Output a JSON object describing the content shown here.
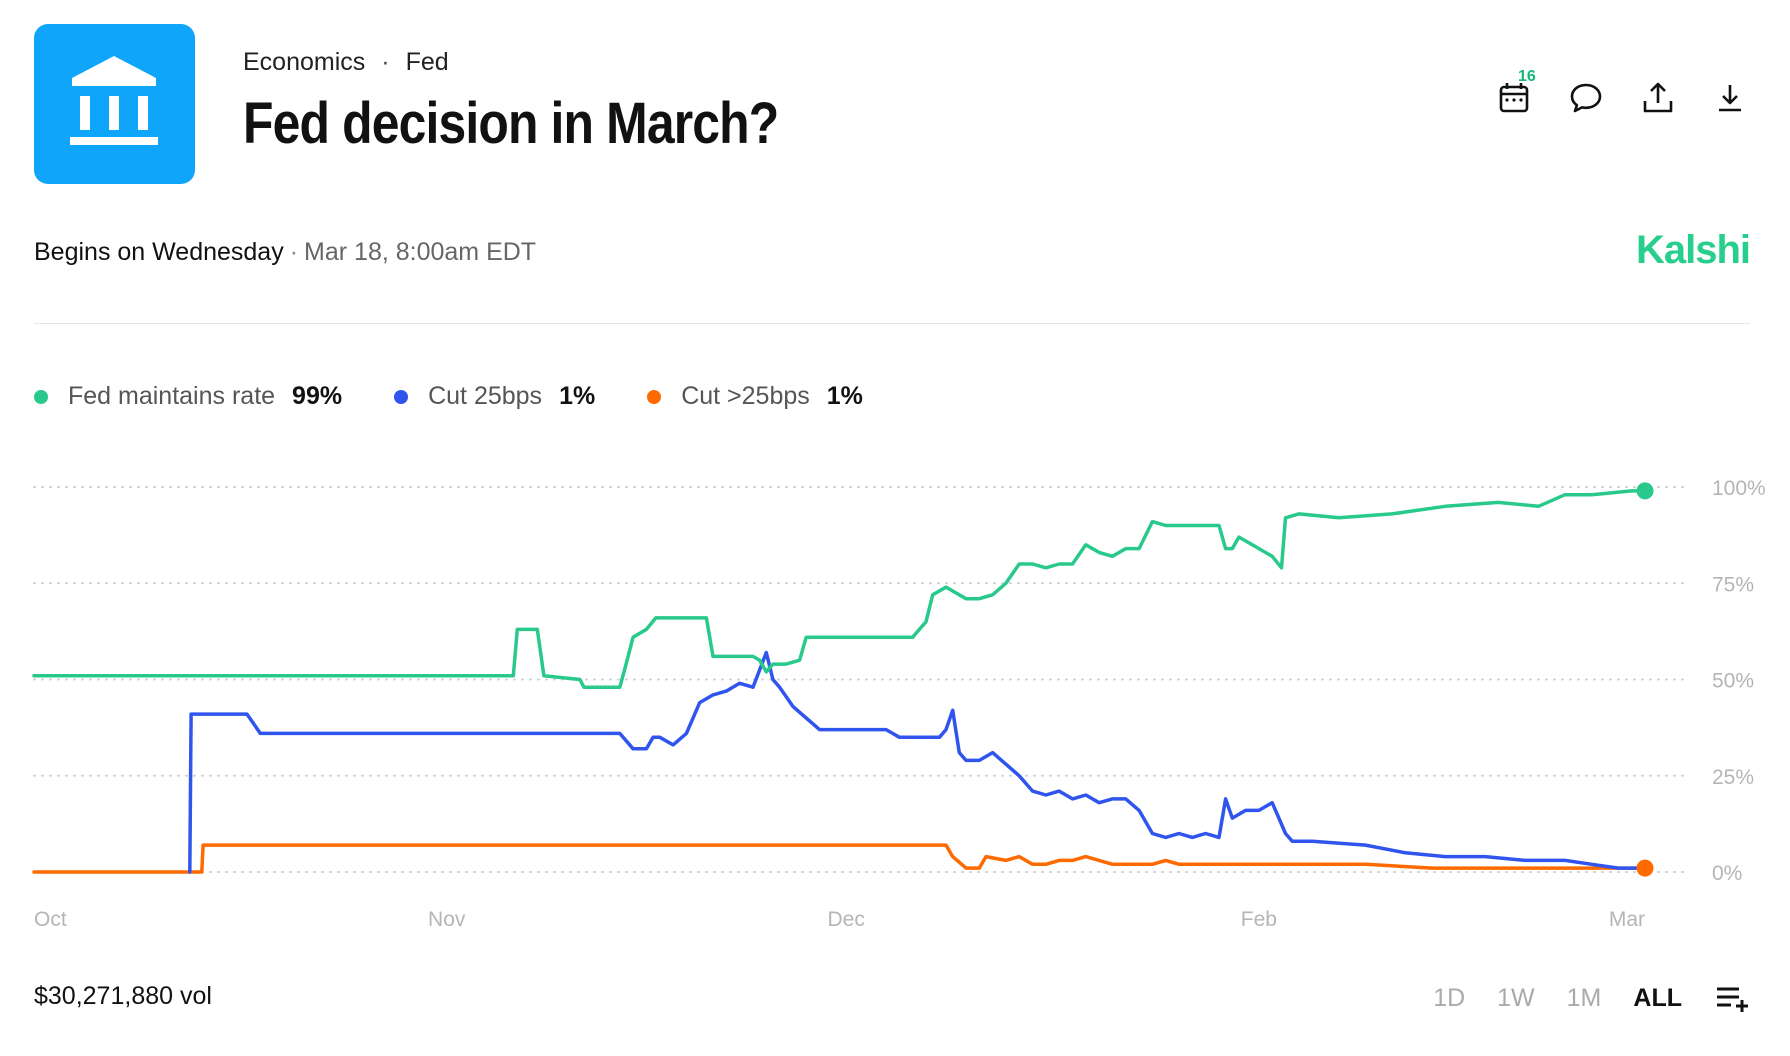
{
  "header": {
    "category": "Economics",
    "subcategory": "Fed",
    "title": "Fed decision in March?",
    "logo_icon": "bank-building-icon",
    "logo_color": "#0ea5fb"
  },
  "actions": {
    "calendar_badge": "16",
    "icons": [
      "calendar-icon",
      "comment-icon",
      "share-icon",
      "download-icon"
    ]
  },
  "schedule": {
    "begins": "Begins on Wednesday",
    "datetime": "Mar 18, 8:00am EDT"
  },
  "brand": {
    "name": "Kalshi",
    "color": "#28ce8b"
  },
  "footer": {
    "volume": "$30,271,880 vol",
    "ranges": [
      "1D",
      "1W",
      "1M",
      "ALL"
    ],
    "active_range": "ALL",
    "menu_icon": "playlist-add-icon"
  },
  "chart_data": {
    "type": "line",
    "x_ticks": [
      "Oct",
      "Nov",
      "Dec",
      "Feb",
      "Mar"
    ],
    "x_tick_positions_day": [
      0,
      31,
      61,
      92,
      121
    ],
    "x_range_days": [
      0,
      121
    ],
    "y_ticks": [
      "0%",
      "25%",
      "50%",
      "75%",
      "100%"
    ],
    "ylim": [
      0,
      100
    ],
    "grid": true,
    "legend_position": "top-left",
    "series": [
      {
        "name": "Fed maintains rate",
        "display": "99%",
        "color": "#28c98b",
        "points": [
          [
            0,
            51
          ],
          [
            36,
            51
          ],
          [
            36.3,
            63
          ],
          [
            37.8,
            63
          ],
          [
            38.3,
            51
          ],
          [
            41,
            50
          ],
          [
            41.3,
            48
          ],
          [
            44,
            48
          ],
          [
            44.4,
            53
          ],
          [
            45,
            61
          ],
          [
            46,
            63
          ],
          [
            46.7,
            66
          ],
          [
            50.5,
            66
          ],
          [
            51,
            56
          ],
          [
            54,
            56
          ],
          [
            54.5,
            55
          ],
          [
            55,
            52
          ],
          [
            55.5,
            54
          ],
          [
            56.5,
            54
          ],
          [
            57.5,
            55
          ],
          [
            58,
            61
          ],
          [
            59,
            61
          ],
          [
            62,
            61
          ],
          [
            66,
            61
          ],
          [
            66.5,
            63
          ],
          [
            67,
            65
          ],
          [
            67.5,
            72
          ],
          [
            68.5,
            74
          ],
          [
            70,
            71
          ],
          [
            71,
            71
          ],
          [
            72,
            72
          ],
          [
            73,
            75
          ],
          [
            74,
            80
          ],
          [
            75,
            80
          ],
          [
            76,
            79
          ],
          [
            77,
            80
          ],
          [
            78,
            80
          ],
          [
            79,
            85
          ],
          [
            80,
            83
          ],
          [
            81,
            82
          ],
          [
            82,
            84
          ],
          [
            83,
            84
          ],
          [
            84,
            91
          ],
          [
            85,
            90
          ],
          [
            87,
            90
          ],
          [
            89,
            90
          ],
          [
            89.5,
            84
          ],
          [
            90,
            84
          ],
          [
            90.5,
            87
          ],
          [
            91,
            86
          ],
          [
            92,
            84
          ],
          [
            93,
            82
          ],
          [
            93.7,
            79
          ],
          [
            94,
            92
          ],
          [
            95,
            93
          ],
          [
            98,
            92
          ],
          [
            102,
            93
          ],
          [
            106,
            95
          ],
          [
            110,
            96
          ],
          [
            113,
            95
          ],
          [
            115,
            98
          ],
          [
            117,
            98
          ],
          [
            120,
            99
          ],
          [
            121,
            99
          ]
        ]
      },
      {
        "name": "Cut 25bps",
        "display": "1%",
        "color": "#2f55ee",
        "points": [
          [
            11.7,
            0
          ],
          [
            11.8,
            41
          ],
          [
            16,
            41
          ],
          [
            17,
            36
          ],
          [
            22,
            36
          ],
          [
            26,
            36
          ],
          [
            31,
            36
          ],
          [
            36,
            36
          ],
          [
            40,
            36
          ],
          [
            44,
            36
          ],
          [
            45,
            32
          ],
          [
            46,
            32
          ],
          [
            46.5,
            35
          ],
          [
            47,
            35
          ],
          [
            48,
            33
          ],
          [
            49,
            36
          ],
          [
            50,
            44
          ],
          [
            51,
            46
          ],
          [
            52,
            47
          ],
          [
            53,
            49
          ],
          [
            54,
            48
          ],
          [
            55,
            57
          ],
          [
            55.5,
            50
          ],
          [
            56,
            48
          ],
          [
            57,
            43
          ],
          [
            58,
            40
          ],
          [
            59,
            37
          ],
          [
            62,
            37
          ],
          [
            64,
            37
          ],
          [
            65,
            35
          ],
          [
            68,
            35
          ],
          [
            68.5,
            37
          ],
          [
            69,
            42
          ],
          [
            69.5,
            31
          ],
          [
            70,
            29
          ],
          [
            71,
            29
          ],
          [
            72,
            31
          ],
          [
            73,
            28
          ],
          [
            74,
            25
          ],
          [
            75,
            21
          ],
          [
            76,
            20
          ],
          [
            77,
            21
          ],
          [
            78,
            19
          ],
          [
            79,
            20
          ],
          [
            80,
            18
          ],
          [
            81,
            19
          ],
          [
            82,
            19
          ],
          [
            83,
            16
          ],
          [
            84,
            10
          ],
          [
            85,
            9
          ],
          [
            86,
            10
          ],
          [
            87,
            9
          ],
          [
            88,
            10
          ],
          [
            89,
            9
          ],
          [
            89.5,
            19
          ],
          [
            90,
            14
          ],
          [
            91,
            16
          ],
          [
            92,
            16
          ],
          [
            93,
            18
          ],
          [
            94,
            10
          ],
          [
            94.5,
            8
          ],
          [
            96,
            8
          ],
          [
            100,
            7
          ],
          [
            103,
            5
          ],
          [
            106,
            4
          ],
          [
            109,
            4
          ],
          [
            112,
            3
          ],
          [
            115,
            3
          ],
          [
            117,
            2
          ],
          [
            119,
            1
          ],
          [
            121,
            1
          ]
        ]
      },
      {
        "name": "Cut >25bps",
        "display": "1%",
        "color": "#ff6a00",
        "points": [
          [
            0,
            0
          ],
          [
            11.7,
            0
          ],
          [
            12.6,
            0
          ],
          [
            12.7,
            7
          ],
          [
            20,
            7
          ],
          [
            40,
            7
          ],
          [
            55,
            7
          ],
          [
            65,
            7
          ],
          [
            68.5,
            7
          ],
          [
            69,
            4
          ],
          [
            70,
            1
          ],
          [
            71,
            1
          ],
          [
            71.5,
            4
          ],
          [
            73,
            3
          ],
          [
            74,
            4
          ],
          [
            75,
            2
          ],
          [
            76,
            2
          ],
          [
            77,
            3
          ],
          [
            78,
            3
          ],
          [
            79,
            4
          ],
          [
            80,
            3
          ],
          [
            81,
            2
          ],
          [
            84,
            2
          ],
          [
            85,
            3
          ],
          [
            86,
            2
          ],
          [
            90,
            2
          ],
          [
            95,
            2
          ],
          [
            100,
            2
          ],
          [
            105,
            1
          ],
          [
            110,
            1
          ],
          [
            121,
            1
          ]
        ]
      }
    ]
  }
}
